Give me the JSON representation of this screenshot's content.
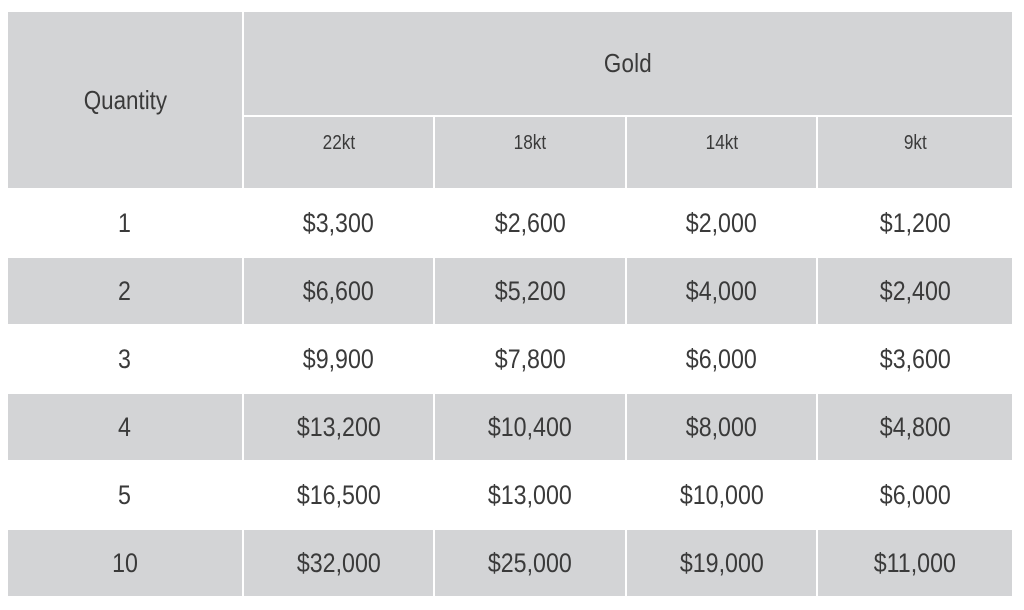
{
  "table": {
    "quantity_header": "Quantity",
    "group_header": "Gold",
    "karats": [
      "22kt",
      "18kt",
      "14kt",
      "9kt"
    ],
    "rows": [
      {
        "qty": "1",
        "prices": [
          "$3,300",
          "$2,600",
          "$2,000",
          "$1,200"
        ]
      },
      {
        "qty": "2",
        "prices": [
          "$6,600",
          "$5,200",
          "$4,000",
          "$2,400"
        ]
      },
      {
        "qty": "3",
        "prices": [
          "$9,900",
          "$7,800",
          "$6,000",
          "$3,600"
        ]
      },
      {
        "qty": "4",
        "prices": [
          "$13,200",
          "$10,400",
          "$8,000",
          "$4,800"
        ]
      },
      {
        "qty": "5",
        "prices": [
          "$16,500",
          "$13,000",
          "$10,000",
          "$6,000"
        ]
      },
      {
        "qty": "10",
        "prices": [
          "$32,000",
          "$25,000",
          "$19,000",
          "$11,000"
        ]
      }
    ]
  },
  "colors": {
    "header_fill": "#d3d4d6",
    "band_fill": "#d3d4d6",
    "text": "#3a3a3a"
  }
}
